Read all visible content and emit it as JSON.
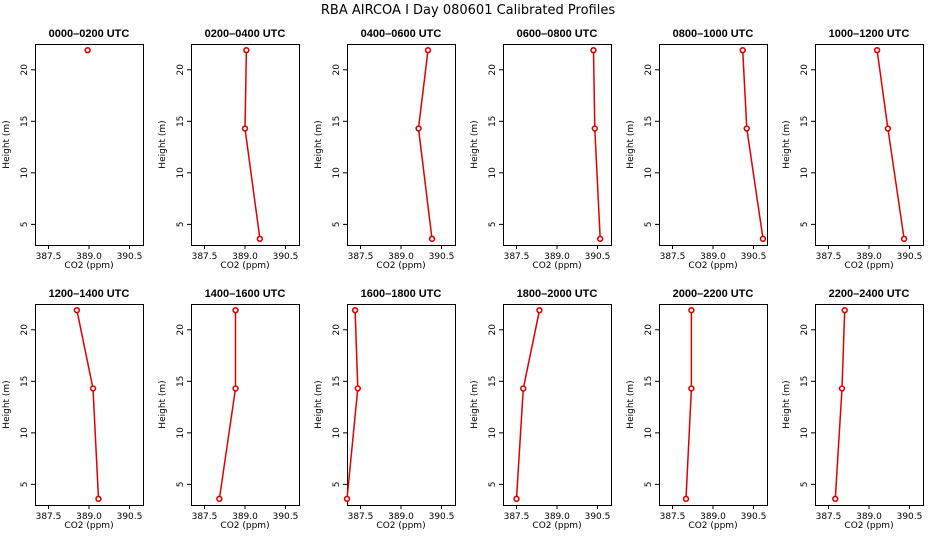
{
  "title": "RBA AIRCOA I  Day 080601  Calibrated Profiles",
  "chart_data": {
    "type": "line",
    "xlabel": "CO2 (ppm)",
    "ylabel": "Height (m)",
    "xlim": [
      387.0,
      391.0
    ],
    "ylim": [
      3.0,
      22.5
    ],
    "x_ticks": [
      "387.5",
      "389.0",
      "390.5"
    ],
    "x_tick_values": [
      387.5,
      389.0,
      390.5
    ],
    "y_ticks": [
      "5",
      "10",
      "15",
      "20"
    ],
    "y_tick_values": [
      5,
      10,
      15,
      20
    ],
    "series_color": "#e00000",
    "panels": [
      {
        "title": "0000–0200 UTC",
        "points": [
          {
            "x": 388.95,
            "y": 21.9
          }
        ]
      },
      {
        "title": "0200–0400 UTC",
        "points": [
          {
            "x": 389.05,
            "y": 21.9
          },
          {
            "x": 389.0,
            "y": 14.3
          },
          {
            "x": 389.55,
            "y": 3.6
          }
        ]
      },
      {
        "title": "0400–0600 UTC",
        "points": [
          {
            "x": 390.0,
            "y": 21.9
          },
          {
            "x": 389.65,
            "y": 14.3
          },
          {
            "x": 390.15,
            "y": 3.6
          }
        ]
      },
      {
        "title": "0600–0800 UTC",
        "points": [
          {
            "x": 390.35,
            "y": 21.9
          },
          {
            "x": 390.4,
            "y": 14.3
          },
          {
            "x": 390.6,
            "y": 3.6
          }
        ]
      },
      {
        "title": "0800–1000 UTC",
        "points": [
          {
            "x": 390.1,
            "y": 21.9
          },
          {
            "x": 390.25,
            "y": 14.3
          },
          {
            "x": 390.85,
            "y": 3.6
          }
        ]
      },
      {
        "title": "1000–1200 UTC",
        "points": [
          {
            "x": 389.3,
            "y": 21.9
          },
          {
            "x": 389.7,
            "y": 14.3
          },
          {
            "x": 390.3,
            "y": 3.6
          }
        ]
      },
      {
        "title": "1200–1400 UTC",
        "points": [
          {
            "x": 388.55,
            "y": 21.9
          },
          {
            "x": 389.15,
            "y": 14.3
          },
          {
            "x": 389.35,
            "y": 3.6
          }
        ]
      },
      {
        "title": "1400–1600 UTC",
        "points": [
          {
            "x": 388.65,
            "y": 21.9
          },
          {
            "x": 388.65,
            "y": 14.3
          },
          {
            "x": 388.05,
            "y": 3.6
          }
        ]
      },
      {
        "title": "1600–1800 UTC",
        "points": [
          {
            "x": 387.3,
            "y": 21.9
          },
          {
            "x": 387.4,
            "y": 14.3
          },
          {
            "x": 387.0,
            "y": 3.6
          }
        ]
      },
      {
        "title": "1800–2000 UTC",
        "points": [
          {
            "x": 388.35,
            "y": 21.9
          },
          {
            "x": 387.75,
            "y": 14.3
          },
          {
            "x": 387.5,
            "y": 3.6
          }
        ]
      },
      {
        "title": "2000–2200 UTC",
        "points": [
          {
            "x": 388.2,
            "y": 21.9
          },
          {
            "x": 388.2,
            "y": 14.3
          },
          {
            "x": 388.0,
            "y": 3.6
          }
        ]
      },
      {
        "title": "2200–2400 UTC",
        "points": [
          {
            "x": 388.1,
            "y": 21.9
          },
          {
            "x": 388.0,
            "y": 14.3
          },
          {
            "x": 387.75,
            "y": 3.6
          }
        ]
      }
    ]
  }
}
